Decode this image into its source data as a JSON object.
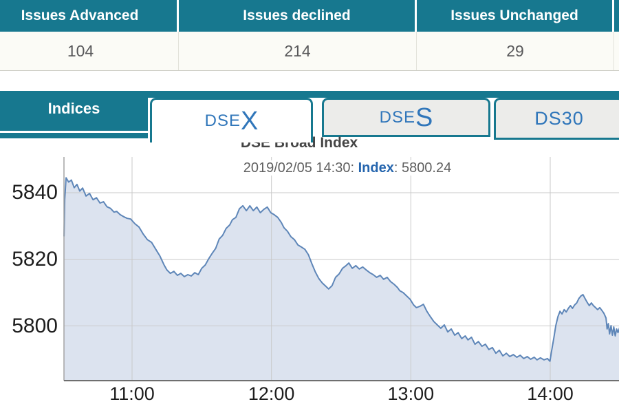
{
  "issues_table": {
    "columns": [
      {
        "header": "Issues Advanced",
        "value": "104"
      },
      {
        "header": "Issues declined",
        "value": "214"
      },
      {
        "header": "Issues Unchanged",
        "value": "29"
      }
    ]
  },
  "tabs": {
    "nav_label": "Indices",
    "items": [
      {
        "id": "dsex",
        "prefix": "DSE",
        "suffix": "X",
        "active": true
      },
      {
        "id": "dses",
        "prefix": "DSE",
        "suffix": "S",
        "active": false
      },
      {
        "id": "ds30",
        "prefix": "DS30",
        "suffix": "",
        "active": false
      }
    ]
  },
  "colors": {
    "teal": "#17788F",
    "tab_text_blue": "#3076BA",
    "subtitle_index_blue": "#2565AE",
    "line": "#5E86B8",
    "fill": "#DCE3EF",
    "gridline": "#C9C9C9"
  },
  "chart_data": {
    "type": "area",
    "title": "DSE Broad Index",
    "subtitle_prefix": "2019/02/05 14:30: ",
    "subtitle_label": "Index",
    "subtitle_value": ": 5800.24",
    "xlabel": "",
    "ylabel": "",
    "x_range_hours": [
      10.51,
      14.5
    ],
    "ylim": [
      5783,
      5849
    ],
    "grid": true,
    "legend": "none",
    "line_color": "#5E86B8",
    "fill_color": "#DCE3EF",
    "x_ticks": [
      {
        "t": 11,
        "label": "11:00"
      },
      {
        "t": 12,
        "label": "12:00"
      },
      {
        "t": 13,
        "label": "13:00"
      },
      {
        "t": 14,
        "label": "14:00"
      }
    ],
    "y_ticks": [
      {
        "v": 5840,
        "label": "5840"
      },
      {
        "v": 5820,
        "label": "5820"
      },
      {
        "v": 5800,
        "label": "5800"
      }
    ],
    "series": [
      {
        "name": "DSEX",
        "points": [
          [
            10.512,
            5827.0
          ],
          [
            10.517,
            5838.0
          ],
          [
            10.527,
            5844.5
          ],
          [
            10.545,
            5843.2
          ],
          [
            10.565,
            5843.8
          ],
          [
            10.585,
            5841.5
          ],
          [
            10.605,
            5842.5
          ],
          [
            10.625,
            5840.5
          ],
          [
            10.645,
            5841.4
          ],
          [
            10.67,
            5839.0
          ],
          [
            10.695,
            5839.8
          ],
          [
            10.72,
            5837.9
          ],
          [
            10.745,
            5838.5
          ],
          [
            10.77,
            5836.9
          ],
          [
            10.795,
            5837.3
          ],
          [
            10.82,
            5835.8
          ],
          [
            10.845,
            5835.3
          ],
          [
            10.87,
            5834.2
          ],
          [
            10.89,
            5834.4
          ],
          [
            10.915,
            5833.4
          ],
          [
            10.94,
            5832.8
          ],
          [
            10.965,
            5832.3
          ],
          [
            10.99,
            5832.1
          ],
          [
            11.02,
            5830.7
          ],
          [
            11.05,
            5829.7
          ],
          [
            11.08,
            5827.6
          ],
          [
            11.11,
            5825.9
          ],
          [
            11.14,
            5825.1
          ],
          [
            11.17,
            5823.0
          ],
          [
            11.2,
            5821.0
          ],
          [
            11.23,
            5818.3
          ],
          [
            11.25,
            5816.8
          ],
          [
            11.275,
            5815.8
          ],
          [
            11.3,
            5816.4
          ],
          [
            11.325,
            5815.2
          ],
          [
            11.35,
            5815.8
          ],
          [
            11.375,
            5814.8
          ],
          [
            11.4,
            5815.4
          ],
          [
            11.425,
            5815.0
          ],
          [
            11.45,
            5816.0
          ],
          [
            11.475,
            5815.4
          ],
          [
            11.5,
            5817.3
          ],
          [
            11.525,
            5818.3
          ],
          [
            11.55,
            5820.2
          ],
          [
            11.575,
            5821.8
          ],
          [
            11.6,
            5823.3
          ],
          [
            11.625,
            5826.1
          ],
          [
            11.65,
            5827.2
          ],
          [
            11.675,
            5829.3
          ],
          [
            11.7,
            5830.3
          ],
          [
            11.72,
            5831.9
          ],
          [
            11.745,
            5832.6
          ],
          [
            11.77,
            5835.2
          ],
          [
            11.795,
            5836.1
          ],
          [
            11.82,
            5834.6
          ],
          [
            11.845,
            5836.1
          ],
          [
            11.87,
            5834.6
          ],
          [
            11.895,
            5835.7
          ],
          [
            11.92,
            5834.0
          ],
          [
            11.945,
            5835.0
          ],
          [
            11.97,
            5835.7
          ],
          [
            11.995,
            5834.0
          ],
          [
            12.02,
            5833.4
          ],
          [
            12.045,
            5832.6
          ],
          [
            12.07,
            5831.1
          ],
          [
            12.09,
            5829.5
          ],
          [
            12.115,
            5828.4
          ],
          [
            12.14,
            5826.8
          ],
          [
            12.165,
            5825.9
          ],
          [
            12.19,
            5824.3
          ],
          [
            12.215,
            5823.7
          ],
          [
            12.24,
            5823.0
          ],
          [
            12.265,
            5821.4
          ],
          [
            12.29,
            5818.7
          ],
          [
            12.315,
            5816.2
          ],
          [
            12.34,
            5814.2
          ],
          [
            12.365,
            5812.9
          ],
          [
            12.39,
            5811.9
          ],
          [
            12.41,
            5811.1
          ],
          [
            12.435,
            5812.1
          ],
          [
            12.46,
            5814.6
          ],
          [
            12.485,
            5815.6
          ],
          [
            12.51,
            5817.3
          ],
          [
            12.535,
            5818.1
          ],
          [
            12.555,
            5818.9
          ],
          [
            12.58,
            5817.3
          ],
          [
            12.605,
            5818.1
          ],
          [
            12.63,
            5817.1
          ],
          [
            12.655,
            5817.7
          ],
          [
            12.68,
            5816.8
          ],
          [
            12.705,
            5816.0
          ],
          [
            12.73,
            5815.4
          ],
          [
            12.755,
            5814.6
          ],
          [
            12.78,
            5815.2
          ],
          [
            12.805,
            5814.0
          ],
          [
            12.83,
            5814.6
          ],
          [
            12.855,
            5813.3
          ],
          [
            12.88,
            5812.5
          ],
          [
            12.905,
            5811.5
          ],
          [
            12.92,
            5810.6
          ],
          [
            12.945,
            5810.0
          ],
          [
            12.97,
            5809.0
          ],
          [
            12.995,
            5808.0
          ],
          [
            13.02,
            5806.3
          ],
          [
            13.04,
            5805.5
          ],
          [
            13.065,
            5805.9
          ],
          [
            13.09,
            5806.5
          ],
          [
            13.115,
            5804.4
          ],
          [
            13.14,
            5802.8
          ],
          [
            13.165,
            5801.3
          ],
          [
            13.19,
            5800.3
          ],
          [
            13.215,
            5799.3
          ],
          [
            13.24,
            5800.3
          ],
          [
            13.265,
            5798.2
          ],
          [
            13.29,
            5799.1
          ],
          [
            13.315,
            5797.2
          ],
          [
            13.34,
            5798.0
          ],
          [
            13.365,
            5796.2
          ],
          [
            13.39,
            5797.0
          ],
          [
            13.41,
            5795.8
          ],
          [
            13.435,
            5796.6
          ],
          [
            13.46,
            5794.5
          ],
          [
            13.485,
            5795.3
          ],
          [
            13.51,
            5793.9
          ],
          [
            13.535,
            5794.5
          ],
          [
            13.56,
            5792.9
          ],
          [
            13.585,
            5793.5
          ],
          [
            13.61,
            5791.8
          ],
          [
            13.635,
            5792.7
          ],
          [
            13.66,
            5791.0
          ],
          [
            13.685,
            5791.8
          ],
          [
            13.71,
            5790.8
          ],
          [
            13.735,
            5791.4
          ],
          [
            13.76,
            5790.6
          ],
          [
            13.785,
            5791.2
          ],
          [
            13.81,
            5790.2
          ],
          [
            13.835,
            5790.8
          ],
          [
            13.86,
            5790.0
          ],
          [
            13.885,
            5790.6
          ],
          [
            13.905,
            5789.8
          ],
          [
            13.93,
            5790.4
          ],
          [
            13.955,
            5789.8
          ],
          [
            13.98,
            5790.2
          ],
          [
            13.998,
            5789.4
          ],
          [
            14.01,
            5792.5
          ],
          [
            14.025,
            5796.2
          ],
          [
            14.04,
            5800.1
          ],
          [
            14.055,
            5802.8
          ],
          [
            14.07,
            5804.4
          ],
          [
            14.085,
            5803.6
          ],
          [
            14.1,
            5804.9
          ],
          [
            14.115,
            5804.2
          ],
          [
            14.13,
            5805.3
          ],
          [
            14.145,
            5806.1
          ],
          [
            14.16,
            5805.3
          ],
          [
            14.175,
            5806.3
          ],
          [
            14.19,
            5806.9
          ],
          [
            14.205,
            5808.2
          ],
          [
            14.22,
            5809.0
          ],
          [
            14.235,
            5809.4
          ],
          [
            14.25,
            5808.2
          ],
          [
            14.265,
            5807.1
          ],
          [
            14.28,
            5806.1
          ],
          [
            14.295,
            5806.9
          ],
          [
            14.31,
            5806.1
          ],
          [
            14.325,
            5805.5
          ],
          [
            14.34,
            5804.9
          ],
          [
            14.355,
            5805.5
          ],
          [
            14.37,
            5804.7
          ],
          [
            14.385,
            5803.8
          ],
          [
            14.4,
            5802.4
          ],
          [
            14.408,
            5799.1
          ],
          [
            14.417,
            5800.7
          ],
          [
            14.426,
            5797.6
          ],
          [
            14.436,
            5800.1
          ],
          [
            14.446,
            5797.2
          ],
          [
            14.456,
            5799.7
          ],
          [
            14.466,
            5797.0
          ],
          [
            14.476,
            5799.1
          ],
          [
            14.486,
            5798.0
          ],
          [
            14.498,
            5799.5
          ]
        ]
      }
    ]
  }
}
